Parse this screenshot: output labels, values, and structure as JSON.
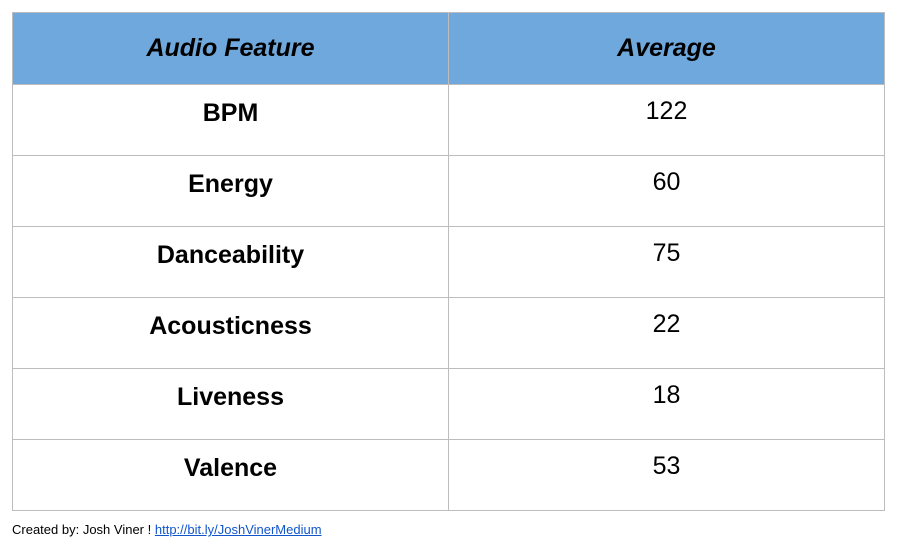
{
  "chart_data": {
    "type": "table",
    "columns": [
      "Audio Feature",
      "Average"
    ],
    "rows": [
      {
        "feature": "BPM",
        "average": "122"
      },
      {
        "feature": "Energy",
        "average": "60"
      },
      {
        "feature": "Danceability",
        "average": "75"
      },
      {
        "feature": "Acousticness",
        "average": "22"
      },
      {
        "feature": "Liveness",
        "average": "18"
      },
      {
        "feature": "Valence",
        "average": "53"
      }
    ]
  },
  "colors": {
    "header_background": "#6fa8dc",
    "grid_line": "#bdbdbd",
    "link": "#1155cc"
  },
  "footer": {
    "credit": "Created by: Josh Viner ",
    "separator": "!",
    "link_text": "http://bit.ly/JoshVinerMedium"
  }
}
